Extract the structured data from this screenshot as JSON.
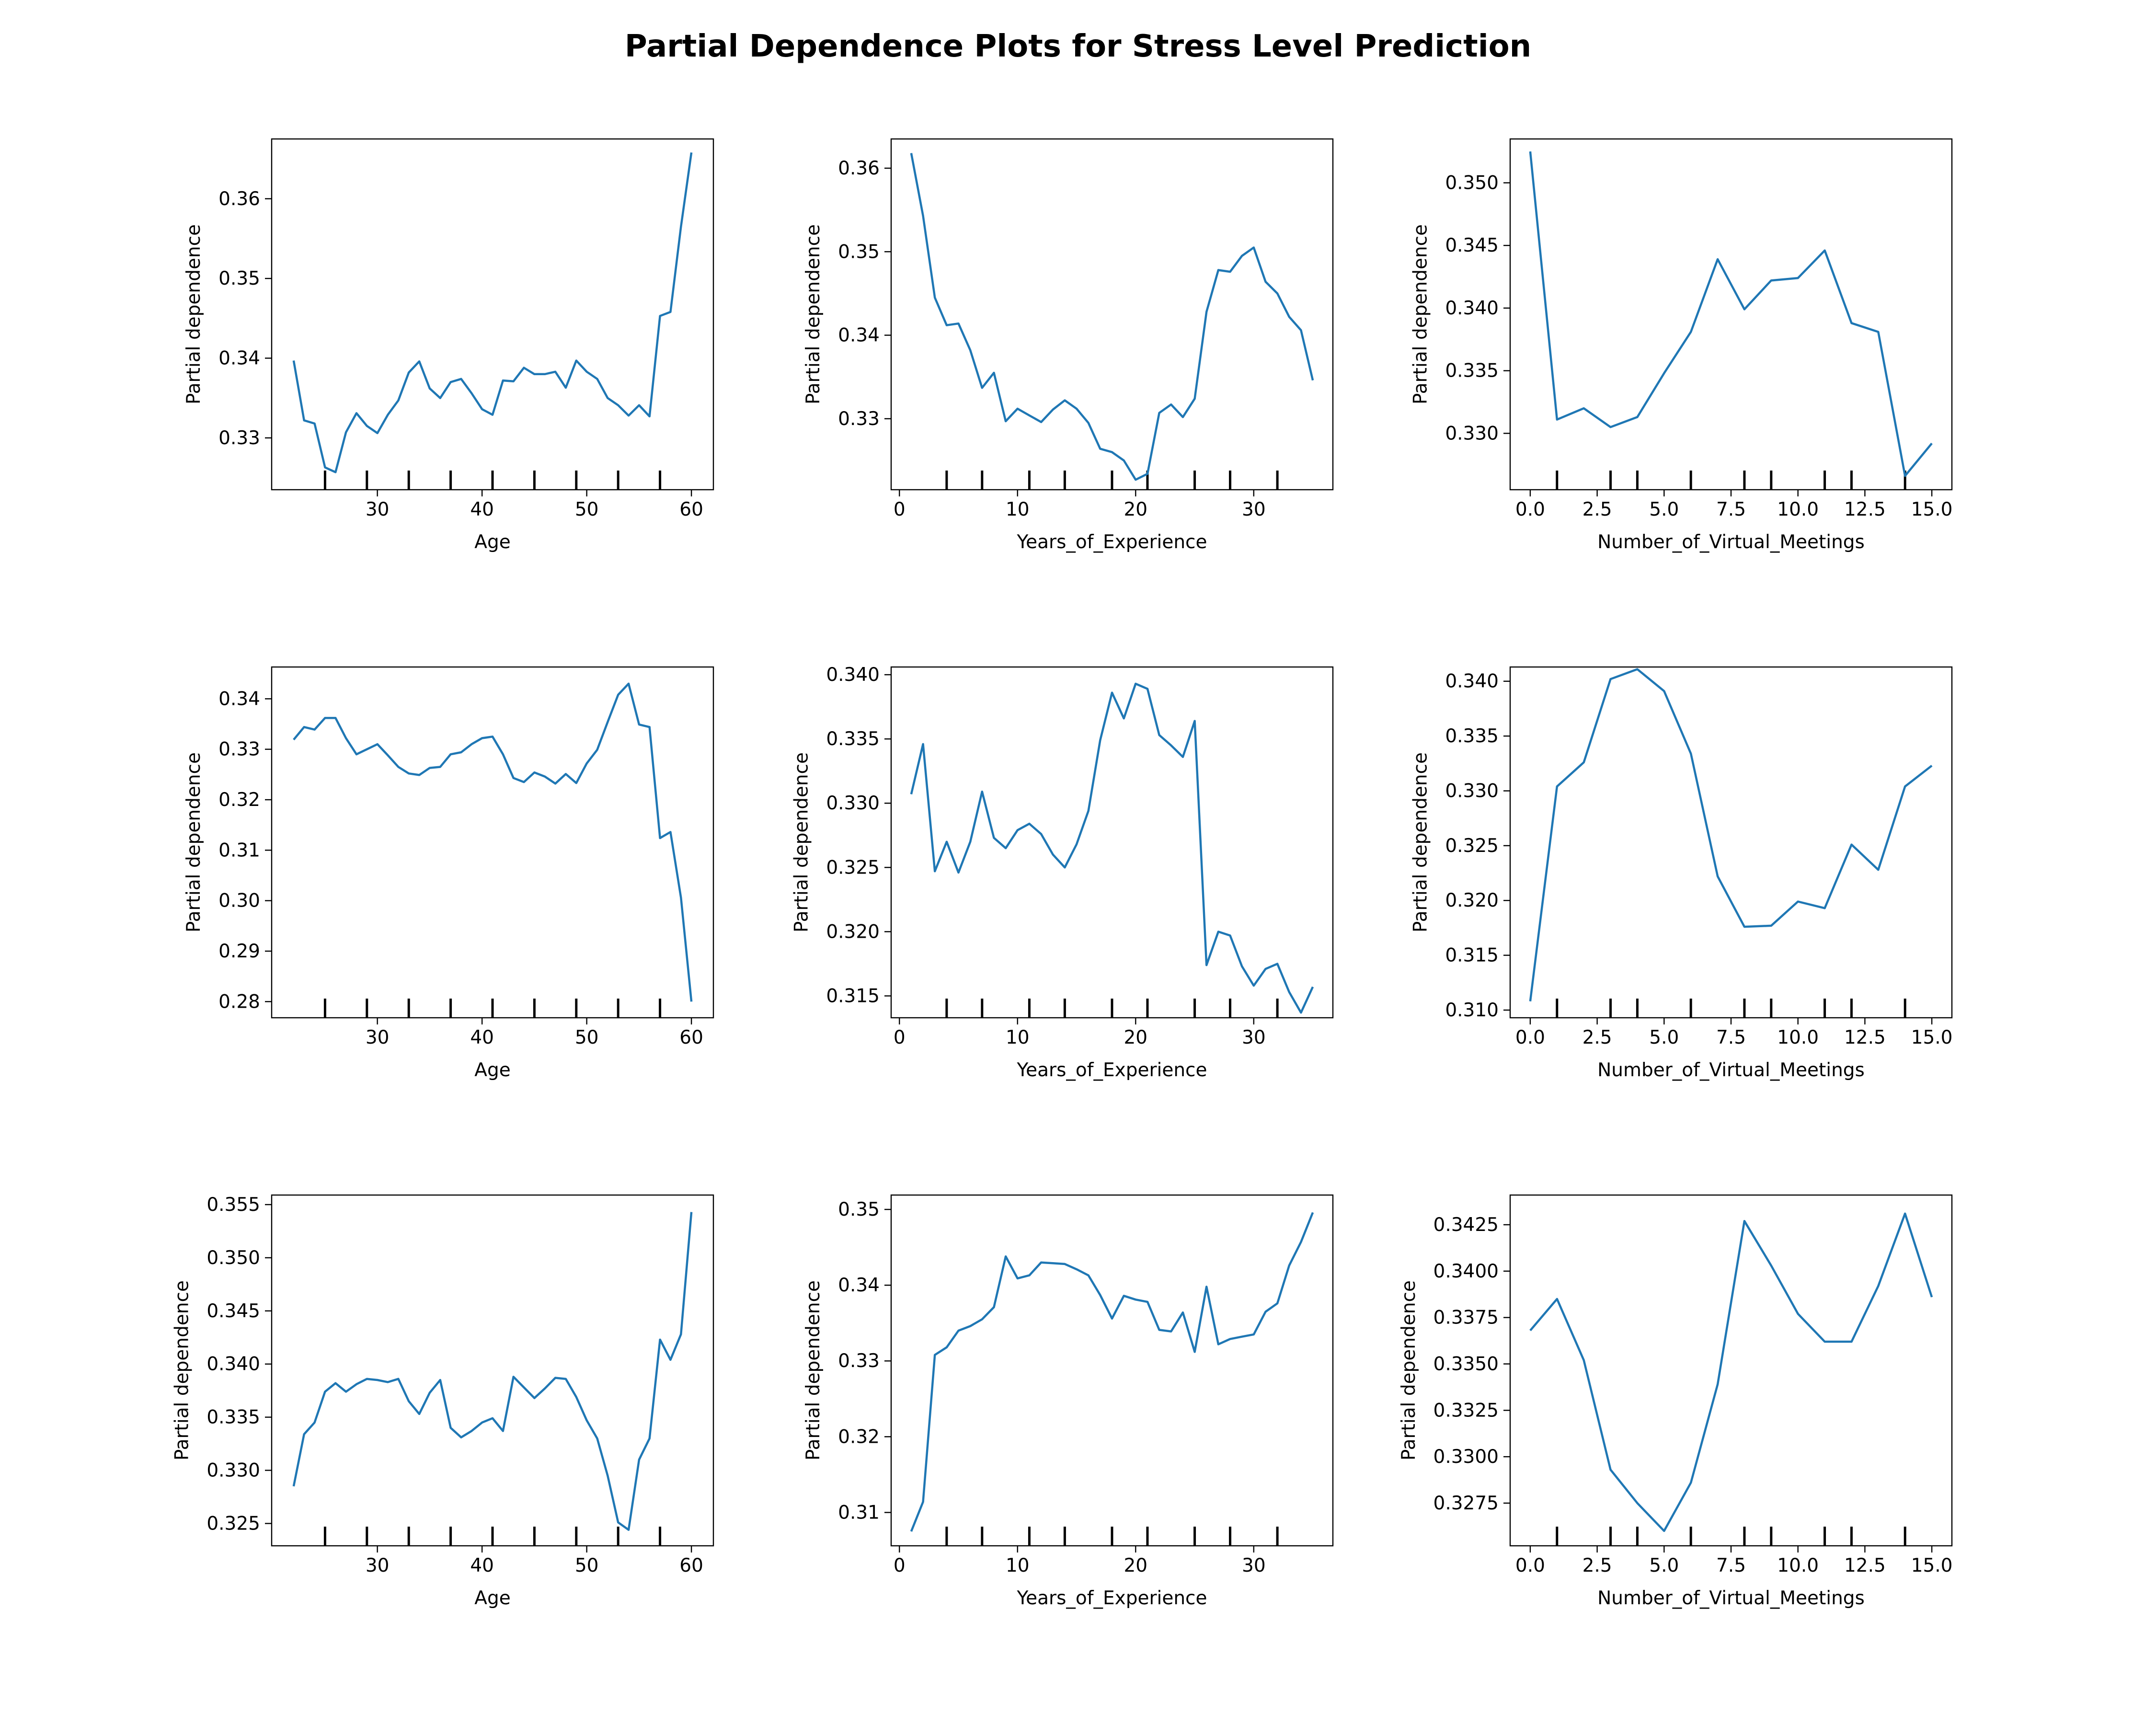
{
  "title": "Partial Dependence Plots for Stress Level Prediction",
  "line_color": "#1f77b4",
  "chart_data": [
    {
      "type": "line",
      "xlabel": "Age",
      "ylabel": "Partial dependence",
      "xlim": [
        19.9,
        62.1
      ],
      "ylim": [
        0.3235,
        0.3675
      ],
      "xticks": [
        30,
        40,
        50,
        60
      ],
      "yticks": [
        0.33,
        0.34,
        0.35,
        0.36
      ],
      "ytick_labels": [
        "0.33",
        "0.34",
        "0.35",
        "0.36"
      ],
      "rug": [
        25,
        29,
        33,
        37,
        41,
        45,
        49,
        53,
        57
      ],
      "x": [
        22,
        23,
        24,
        25,
        26,
        27,
        28,
        29,
        30,
        31,
        32,
        33,
        34,
        35,
        36,
        37,
        38,
        39,
        40,
        41,
        42,
        43,
        44,
        45,
        46,
        47,
        48,
        49,
        50,
        51,
        52,
        53,
        54,
        55,
        56,
        57,
        58,
        59,
        60
      ],
      "y": [
        0.3397,
        0.3322,
        0.3318,
        0.3263,
        0.3257,
        0.3307,
        0.3331,
        0.3315,
        0.3306,
        0.3329,
        0.3347,
        0.3382,
        0.3396,
        0.3362,
        0.335,
        0.337,
        0.3374,
        0.3356,
        0.3336,
        0.3329,
        0.3372,
        0.3371,
        0.3388,
        0.338,
        0.338,
        0.3383,
        0.3363,
        0.3397,
        0.3383,
        0.3374,
        0.335,
        0.3341,
        0.3328,
        0.3341,
        0.3327,
        0.3453,
        0.3458,
        0.3565,
        0.3658
      ]
    },
    {
      "type": "line",
      "xlabel": "Years_of_Experience",
      "ylabel": "Partial dependence",
      "xlim": [
        -0.7,
        36.7
      ],
      "ylim": [
        0.3215,
        0.3635
      ],
      "xticks": [
        0,
        10,
        20,
        30
      ],
      "yticks": [
        0.33,
        0.34,
        0.35,
        0.36
      ],
      "ytick_labels": [
        "0.33",
        "0.34",
        "0.35",
        "0.36"
      ],
      "rug": [
        4,
        7,
        11,
        14,
        18,
        21,
        25,
        28,
        32
      ],
      "x": [
        1,
        2,
        3,
        4,
        5,
        6,
        7,
        8,
        9,
        10,
        11,
        12,
        13,
        14,
        15,
        16,
        17,
        18,
        19,
        20,
        21,
        22,
        23,
        24,
        25,
        26,
        27,
        28,
        29,
        30,
        31,
        32,
        33,
        34,
        35
      ],
      "y": [
        0.3618,
        0.3543,
        0.3445,
        0.3412,
        0.3414,
        0.3382,
        0.3337,
        0.3355,
        0.3297,
        0.3312,
        0.3304,
        0.3296,
        0.3311,
        0.3322,
        0.3312,
        0.3295,
        0.3264,
        0.326,
        0.325,
        0.3227,
        0.3234,
        0.3307,
        0.3317,
        0.3302,
        0.3324,
        0.3428,
        0.3478,
        0.3476,
        0.3495,
        0.3505,
        0.3464,
        0.345,
        0.3422,
        0.3406,
        0.3346
      ]
    },
    {
      "type": "line",
      "xlabel": "Number_of_Virtual_Meetings",
      "ylabel": "Partial dependence",
      "xlim": [
        -0.75,
        15.75
      ],
      "ylim": [
        0.3255,
        0.3535
      ],
      "xticks": [
        0.0,
        2.5,
        5.0,
        7.5,
        10.0,
        12.5,
        15.0
      ],
      "yticks": [
        0.33,
        0.335,
        0.34,
        0.345,
        0.35
      ],
      "ytick_labels": [
        "0.330",
        "0.335",
        "0.340",
        "0.345",
        "0.350"
      ],
      "rug": [
        1,
        3,
        4,
        6,
        8,
        9,
        11,
        12,
        14
      ],
      "x": [
        0,
        1,
        2,
        3,
        4,
        5,
        6,
        7,
        8,
        9,
        10,
        11,
        12,
        13,
        14,
        15
      ],
      "y": [
        0.3525,
        0.3311,
        0.332,
        0.3305,
        0.3313,
        0.3348,
        0.3381,
        0.3439,
        0.3399,
        0.3422,
        0.3424,
        0.3446,
        0.3388,
        0.3381,
        0.3266,
        0.3292
      ]
    },
    {
      "type": "line",
      "xlabel": "Age",
      "ylabel": "Partial dependence",
      "xlim": [
        19.9,
        62.1
      ],
      "ylim": [
        0.2768,
        0.3463
      ],
      "xticks": [
        30,
        40,
        50,
        60
      ],
      "yticks": [
        0.28,
        0.29,
        0.3,
        0.31,
        0.32,
        0.33,
        0.34
      ],
      "ytick_labels": [
        "0.28",
        "0.29",
        "0.30",
        "0.31",
        "0.32",
        "0.33",
        "0.34"
      ],
      "rug": [
        25,
        29,
        33,
        37,
        41,
        45,
        49,
        53,
        57
      ],
      "x": [
        22,
        23,
        24,
        25,
        26,
        27,
        28,
        29,
        30,
        31,
        32,
        33,
        34,
        35,
        36,
        37,
        38,
        39,
        40,
        41,
        42,
        43,
        44,
        45,
        46,
        47,
        48,
        49,
        50,
        51,
        52,
        53,
        54,
        55,
        56,
        57,
        58,
        59,
        60
      ],
      "y": [
        0.3319,
        0.3344,
        0.3339,
        0.3362,
        0.3362,
        0.3322,
        0.329,
        0.33,
        0.331,
        0.3288,
        0.3265,
        0.3252,
        0.3249,
        0.3263,
        0.3265,
        0.329,
        0.3294,
        0.331,
        0.3322,
        0.3325,
        0.329,
        0.3243,
        0.3235,
        0.3254,
        0.3246,
        0.3232,
        0.3251,
        0.3233,
        0.3272,
        0.3299,
        0.3354,
        0.3408,
        0.343,
        0.3349,
        0.3344,
        0.3124,
        0.3136,
        0.3006,
        0.28
      ]
    },
    {
      "type": "line",
      "xlabel": "Years_of_Experience",
      "ylabel": "Partial dependence",
      "xlim": [
        -0.7,
        36.7
      ],
      "ylim": [
        0.3133,
        0.3406
      ],
      "xticks": [
        0,
        10,
        20,
        30
      ],
      "yticks": [
        0.315,
        0.32,
        0.325,
        0.33,
        0.335,
        0.34
      ],
      "ytick_labels": [
        "0.315",
        "0.320",
        "0.325",
        "0.330",
        "0.335",
        "0.340"
      ],
      "rug": [
        4,
        7,
        11,
        14,
        18,
        21,
        25,
        28,
        32
      ],
      "x": [
        1,
        2,
        3,
        4,
        5,
        6,
        7,
        8,
        9,
        10,
        11,
        12,
        13,
        14,
        15,
        16,
        17,
        18,
        19,
        20,
        21,
        22,
        23,
        24,
        25,
        26,
        27,
        28,
        29,
        30,
        31,
        32,
        33,
        34,
        35
      ],
      "y": [
        0.3307,
        0.3346,
        0.3247,
        0.327,
        0.3246,
        0.327,
        0.3309,
        0.3273,
        0.3265,
        0.3279,
        0.3284,
        0.3276,
        0.326,
        0.325,
        0.3268,
        0.3294,
        0.3349,
        0.3386,
        0.3366,
        0.3393,
        0.3389,
        0.3353,
        0.3345,
        0.3336,
        0.3364,
        0.3174,
        0.32,
        0.3197,
        0.3173,
        0.3158,
        0.3171,
        0.3175,
        0.3153,
        0.3137,
        0.3157
      ]
    },
    {
      "type": "line",
      "xlabel": "Number_of_Virtual_Meetings",
      "ylabel": "Partial dependence",
      "xlim": [
        -0.75,
        15.75
      ],
      "ylim": [
        0.3093,
        0.3413
      ],
      "xticks": [
        0.0,
        2.5,
        5.0,
        7.5,
        10.0,
        12.5,
        15.0
      ],
      "yticks": [
        0.31,
        0.315,
        0.32,
        0.325,
        0.33,
        0.335,
        0.34
      ],
      "ytick_labels": [
        "0.310",
        "0.315",
        "0.320",
        "0.325",
        "0.330",
        "0.335",
        "0.340"
      ],
      "rug": [
        1,
        3,
        4,
        6,
        8,
        9,
        11,
        12,
        14
      ],
      "x": [
        0,
        1,
        2,
        3,
        4,
        5,
        6,
        7,
        8,
        9,
        10,
        11,
        12,
        13,
        14,
        15
      ],
      "y": [
        0.3108,
        0.3304,
        0.3326,
        0.3402,
        0.3411,
        0.3391,
        0.3334,
        0.3222,
        0.3176,
        0.3177,
        0.3199,
        0.3193,
        0.3251,
        0.3228,
        0.3304,
        0.3323
      ]
    },
    {
      "type": "line",
      "xlabel": "Age",
      "ylabel": "Partial dependence",
      "xlim": [
        19.9,
        62.1
      ],
      "ylim": [
        0.3229,
        0.3559
      ],
      "xticks": [
        30,
        40,
        50,
        60
      ],
      "yticks": [
        0.325,
        0.33,
        0.335,
        0.34,
        0.345,
        0.35,
        0.355
      ],
      "ytick_labels": [
        "0.325",
        "0.330",
        "0.335",
        "0.340",
        "0.345",
        "0.350",
        "0.355"
      ],
      "rug": [
        25,
        29,
        33,
        37,
        41,
        45,
        49,
        53,
        57
      ],
      "x": [
        22,
        23,
        24,
        25,
        26,
        27,
        28,
        29,
        30,
        31,
        32,
        33,
        34,
        35,
        36,
        37,
        38,
        39,
        40,
        41,
        42,
        43,
        44,
        45,
        46,
        47,
        48,
        49,
        50,
        51,
        52,
        53,
        54,
        55,
        56,
        57,
        58,
        59,
        60
      ],
      "y": [
        0.3285,
        0.3334,
        0.3345,
        0.3374,
        0.3382,
        0.3374,
        0.3381,
        0.3386,
        0.3385,
        0.3383,
        0.3386,
        0.3365,
        0.3353,
        0.3373,
        0.3385,
        0.334,
        0.3331,
        0.3337,
        0.3345,
        0.3349,
        0.3337,
        0.3388,
        0.3378,
        0.3368,
        0.3377,
        0.3387,
        0.3386,
        0.3369,
        0.3347,
        0.333,
        0.3295,
        0.3251,
        0.3244,
        0.331,
        0.333,
        0.3423,
        0.3404,
        0.3428,
        0.3543
      ]
    },
    {
      "type": "line",
      "xlabel": "Years_of_Experience",
      "ylabel": "Partial dependence",
      "xlim": [
        -0.7,
        36.7
      ],
      "ylim": [
        0.3056,
        0.3519
      ],
      "xticks": [
        0,
        10,
        20,
        30
      ],
      "yticks": [
        0.31,
        0.32,
        0.33,
        0.34,
        0.35
      ],
      "ytick_labels": [
        "0.31",
        "0.32",
        "0.33",
        "0.34",
        "0.35"
      ],
      "rug": [
        4,
        7,
        11,
        14,
        18,
        21,
        25,
        28,
        32
      ],
      "x": [
        1,
        2,
        3,
        4,
        5,
        6,
        7,
        8,
        9,
        10,
        11,
        12,
        13,
        14,
        15,
        16,
        17,
        18,
        19,
        20,
        21,
        22,
        23,
        24,
        25,
        26,
        27,
        28,
        29,
        30,
        31,
        32,
        33,
        34,
        35
      ],
      "y": [
        0.3075,
        0.3114,
        0.3308,
        0.3318,
        0.334,
        0.3346,
        0.3355,
        0.3371,
        0.3438,
        0.3409,
        0.3413,
        0.343,
        0.3429,
        0.3428,
        0.3421,
        0.3413,
        0.3387,
        0.3356,
        0.3386,
        0.3381,
        0.3378,
        0.3341,
        0.3339,
        0.3364,
        0.3312,
        0.3398,
        0.3322,
        0.3329,
        0.3332,
        0.3335,
        0.3365,
        0.3376,
        0.3426,
        0.3457,
        0.3496
      ]
    },
    {
      "type": "line",
      "xlabel": "Number_of_Virtual_Meetings",
      "ylabel": "Partial dependence",
      "xlim": [
        -0.75,
        15.75
      ],
      "ylim": [
        0.3252,
        0.3441
      ],
      "xticks": [
        0.0,
        2.5,
        5.0,
        7.5,
        10.0,
        12.5,
        15.0
      ],
      "yticks": [
        0.3275,
        0.33,
        0.3325,
        0.335,
        0.3375,
        0.34,
        0.3425
      ],
      "ytick_labels": [
        "0.3275",
        "0.3300",
        "0.3325",
        "0.3350",
        "0.3375",
        "0.3400",
        "0.3425"
      ],
      "rug": [
        1,
        3,
        4,
        6,
        8,
        9,
        11,
        12,
        14
      ],
      "x": [
        0,
        1,
        2,
        3,
        4,
        5,
        6,
        7,
        8,
        9,
        10,
        11,
        12,
        13,
        14,
        15
      ],
      "y": [
        0.3368,
        0.3385,
        0.3352,
        0.3293,
        0.3275,
        0.326,
        0.3286,
        0.3339,
        0.3427,
        0.3403,
        0.3377,
        0.3362,
        0.3362,
        0.3392,
        0.3431,
        0.3386
      ]
    }
  ]
}
